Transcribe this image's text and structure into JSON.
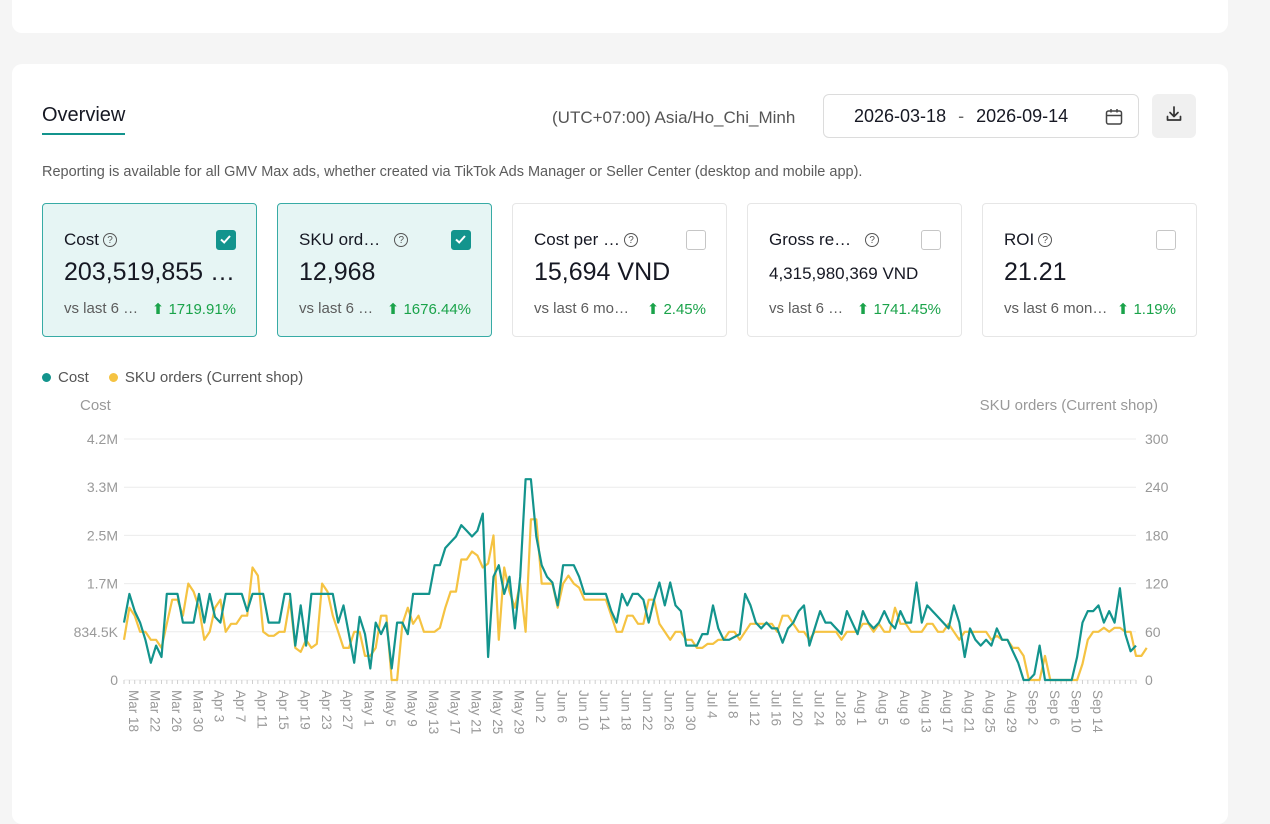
{
  "header": {
    "tab_label": "Overview",
    "timezone": "(UTC+07:00) Asia/Ho_Chi_Minh",
    "date_start": "2026-03-18",
    "date_sep": "-",
    "date_end": "2026-09-14"
  },
  "note": "Reporting is available for all GMV Max ads, whether created via TikTok Ads Manager or Seller Center (desktop and mobile app).",
  "metrics": [
    {
      "label": "Cost",
      "value": "203,519,855 …",
      "vs": "vs last 6 …",
      "change": "1719.91%",
      "checked": true
    },
    {
      "label": "SKU ord…",
      "value": "12,968",
      "vs": "vs last 6 …",
      "change": "1676.44%",
      "checked": true
    },
    {
      "label": "Cost per …",
      "value": "15,694 VND",
      "vs": "vs last 6 mo…",
      "change": "2.45%",
      "checked": false
    },
    {
      "label": "Gross re…",
      "value": "4,315,980,369 VND",
      "vs": "vs last 6 …",
      "change": "1741.45%",
      "checked": false
    },
    {
      "label": "ROI",
      "value": "21.21",
      "vs": "vs last 6 mon…",
      "change": "1.19%",
      "checked": false
    }
  ],
  "colors": {
    "cost": "#13948d",
    "sku": "#f5c342",
    "accent": "#13948d",
    "positive": "#1aa34a"
  },
  "chart_data": {
    "type": "line",
    "legend": [
      "Cost",
      "SKU orders (Current shop)"
    ],
    "legend_position": "top-left",
    "y_left_label": "Cost",
    "y_right_label": "SKU orders (Current shop)",
    "y_left_ticks": [
      "4.2M",
      "3.3M",
      "2.5M",
      "1.7M",
      "834.5K",
      "0"
    ],
    "y_right_ticks": [
      "300",
      "240",
      "180",
      "120",
      "60",
      "0"
    ],
    "y_left_range": [
      0,
      4200000
    ],
    "y_right_range": [
      0,
      300
    ],
    "grid": true,
    "x_tick_labels": [
      "Mar 18",
      "Mar 22",
      "Mar 26",
      "Mar 30",
      "Apr 3",
      "Apr 7",
      "Apr 11",
      "Apr 15",
      "Apr 19",
      "Apr 23",
      "Apr 27",
      "May 1",
      "May 5",
      "May 9",
      "May 13",
      "May 17",
      "May 21",
      "May 25",
      "May 29",
      "Jun 2",
      "Jun 6",
      "Jun 10",
      "Jun 14",
      "Jun 18",
      "Jun 22",
      "Jun 26",
      "Jun 30",
      "Jul 4",
      "Jul 8",
      "Jul 12",
      "Jul 16",
      "Jul 20",
      "Jul 24",
      "Jul 28",
      "Aug 1",
      "Aug 5",
      "Aug 9",
      "Aug 13",
      "Aug 17",
      "Aug 21",
      "Aug 25",
      "Aug 29",
      "Sep 2",
      "Sep 6",
      "Sep 10",
      "Sep 14"
    ],
    "series": [
      {
        "name": "Cost",
        "axis": "left",
        "values": [
          1000000,
          1500000,
          1200000,
          1000000,
          700000,
          300000,
          600000,
          400000,
          1500000,
          1500000,
          1500000,
          1000000,
          1000000,
          1000000,
          1500000,
          1000000,
          1500000,
          1100000,
          1000000,
          1500000,
          1500000,
          1500000,
          1500000,
          1200000,
          1500000,
          1500000,
          1500000,
          1000000,
          1000000,
          1000000,
          1500000,
          1500000,
          600000,
          1300000,
          600000,
          1500000,
          1500000,
          1500000,
          1500000,
          1500000,
          1000000,
          1300000,
          800000,
          300000,
          1100000,
          800000,
          200000,
          1000000,
          800000,
          1000000,
          200000,
          1000000,
          1000000,
          800000,
          1500000,
          1500000,
          1500000,
          1500000,
          2000000,
          2000000,
          2300000,
          2400000,
          2500000,
          2700000,
          2600000,
          2500000,
          2600000,
          2900000,
          400000,
          1800000,
          2000000,
          1500000,
          1800000,
          900000,
          1800000,
          3500000,
          3500000,
          2500000,
          2000000,
          1800000,
          1700000,
          1300000,
          2000000,
          2000000,
          2000000,
          1800000,
          1500000,
          1500000,
          1500000,
          1500000,
          1500000,
          1200000,
          1000000,
          1500000,
          1300000,
          1500000,
          1500000,
          1400000,
          1000000,
          1400000,
          1700000,
          1300000,
          1700000,
          1300000,
          1200000,
          600000,
          600000,
          600000,
          800000,
          800000,
          1300000,
          900000,
          700000,
          700000,
          750000,
          800000,
          1500000,
          1300000,
          1000000,
          900000,
          1000000,
          900000,
          900000,
          650000,
          900000,
          1000000,
          1200000,
          1300000,
          600000,
          900000,
          1200000,
          1000000,
          1000000,
          900000,
          800000,
          1200000,
          1000000,
          800000,
          1200000,
          1000000,
          900000,
          1000000,
          1200000,
          1000000,
          900000,
          1200000,
          1000000,
          1000000,
          1700000,
          1000000,
          1300000,
          1200000,
          1100000,
          1000000,
          900000,
          1300000,
          1000000,
          400000,
          900000,
          700000,
          600000,
          700000,
          600000,
          900000,
          700000,
          700000,
          500000,
          300000,
          0,
          0,
          100000,
          600000,
          0,
          0,
          0,
          0,
          0,
          0,
          400000,
          1000000,
          1200000,
          1200000,
          1300000,
          1000000,
          1200000,
          1000000,
          1600000,
          800000,
          500000,
          600000
        ]
      },
      {
        "name": "SKU orders (Current shop)",
        "axis": "right",
        "values": [
          50,
          90,
          80,
          60,
          60,
          50,
          50,
          40,
          70,
          100,
          100,
          80,
          120,
          110,
          90,
          50,
          60,
          90,
          100,
          60,
          70,
          70,
          80,
          80,
          140,
          130,
          60,
          55,
          55,
          60,
          60,
          100,
          40,
          35,
          50,
          40,
          45,
          120,
          110,
          80,
          60,
          40,
          40,
          60,
          60,
          30,
          30,
          40,
          80,
          80,
          0,
          0,
          70,
          90,
          70,
          80,
          60,
          60,
          60,
          65,
          90,
          110,
          110,
          150,
          150,
          160,
          155,
          140,
          145,
          180,
          50,
          140,
          110,
          90,
          120,
          60,
          200,
          200,
          120,
          120,
          120,
          90,
          120,
          130,
          120,
          115,
          100,
          100,
          100,
          100,
          100,
          80,
          60,
          60,
          80,
          80,
          70,
          70,
          100,
          100,
          70,
          60,
          50,
          60,
          60,
          50,
          50,
          40,
          40,
          45,
          45,
          50,
          50,
          60,
          60,
          50,
          60,
          70,
          70,
          70,
          70,
          70,
          60,
          80,
          80,
          70,
          60,
          60,
          50,
          60,
          60,
          60,
          60,
          60,
          50,
          60,
          60,
          60,
          70,
          70,
          60,
          70,
          60,
          60,
          90,
          70,
          70,
          60,
          60,
          60,
          70,
          70,
          60,
          60,
          70,
          60,
          50,
          60,
          60,
          60,
          60,
          60,
          50,
          55,
          50,
          50,
          40,
          40,
          30,
          0,
          0,
          0,
          30,
          0,
          0,
          0,
          0,
          0,
          0,
          20,
          50,
          60,
          60,
          65,
          60,
          65,
          65,
          60,
          60,
          30,
          30,
          40
        ]
      }
    ]
  }
}
